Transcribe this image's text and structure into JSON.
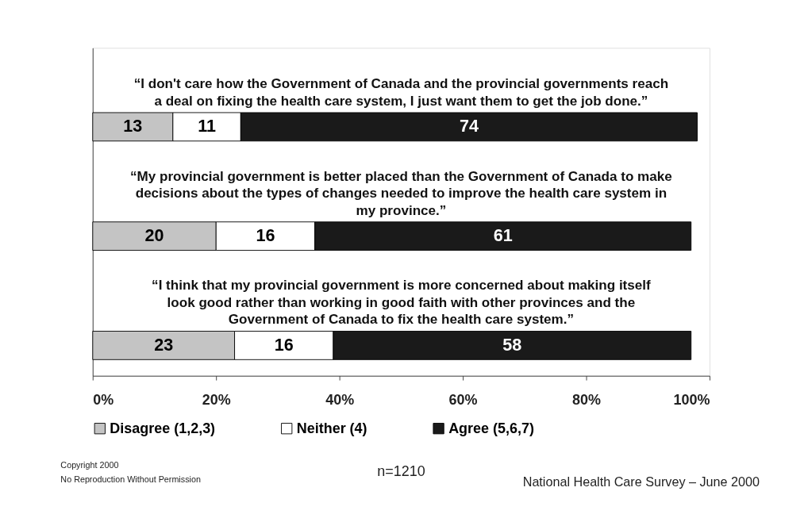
{
  "chart_data": {
    "type": "bar",
    "orientation": "horizontal",
    "stacked": true,
    "categories": [
      "“I don't care how the Government of Canada and the provincial governments reach a deal on fixing the health care system, I just want them to get the job done.”",
      "“My provincial government is better placed than the Government of Canada to make decisions about the types of changes needed to improve the health care system in my province.”",
      "“I think that my provincial government is more concerned about making itself look good rather than working in good faith with other provinces and the Government of Canada to fix the health care system.”"
    ],
    "series": [
      {
        "name": "Disagree (1,2,3)",
        "color": "#c4c4c4",
        "values": [
          13,
          20,
          23
        ]
      },
      {
        "name": "Neither (4)",
        "color": "#ffffff",
        "values": [
          11,
          16,
          16
        ]
      },
      {
        "name": "Agree (5,6,7)",
        "color": "#1a1a1a",
        "values": [
          74,
          61,
          58
        ]
      }
    ],
    "xlim": [
      0,
      100
    ],
    "xticks": [
      {
        "value": 0,
        "label": "0%"
      },
      {
        "value": 20,
        "label": "20%"
      },
      {
        "value": 40,
        "label": "40%"
      },
      {
        "value": 60,
        "label": "60%"
      },
      {
        "value": 80,
        "label": "80%"
      },
      {
        "value": 100,
        "label": "100%"
      }
    ],
    "tick_labels": "x",
    "data_labels": true,
    "legend": "bottom",
    "grid": false,
    "annotations": [
      "Copyright 2000",
      "No Reproduction Without Permission",
      "n=1210",
      "National Health Care Survey – June 2000"
    ]
  }
}
